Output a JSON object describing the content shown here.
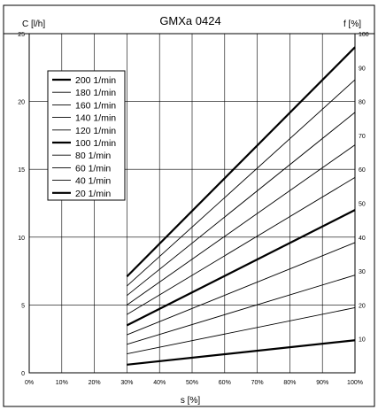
{
  "chart_data": {
    "type": "line",
    "title": "GMXa 0424",
    "ylabel": "C [l/h]",
    "y2label": "f [%]",
    "xlabel": "s [%]",
    "x_ticks": [
      "0%",
      "10%",
      "20%",
      "30%",
      "40%",
      "50%",
      "60%",
      "70%",
      "80%",
      "90%",
      "100%"
    ],
    "y_ticks": [
      "0",
      "5",
      "10",
      "15",
      "20",
      "25"
    ],
    "y2_ticks": [
      "10",
      "20",
      "30",
      "40",
      "50",
      "60",
      "70",
      "80",
      "90",
      "100"
    ],
    "xlim": [
      0,
      100
    ],
    "ylim": [
      0,
      25
    ],
    "y2lim": [
      0,
      100
    ],
    "grid": true,
    "legend_position": "top-left",
    "series": [
      {
        "name": "200 1/min",
        "bold": true,
        "x": [
          30,
          100
        ],
        "y": [
          7.1,
          24.0
        ]
      },
      {
        "name": "180 1/min",
        "bold": false,
        "x": [
          30,
          100
        ],
        "y": [
          6.4,
          21.6
        ]
      },
      {
        "name": "160 1/min",
        "bold": false,
        "x": [
          30,
          100
        ],
        "y": [
          5.7,
          19.2
        ]
      },
      {
        "name": "140 1/min",
        "bold": false,
        "x": [
          30,
          100
        ],
        "y": [
          5.0,
          16.8
        ]
      },
      {
        "name": "120 1/min",
        "bold": false,
        "x": [
          30,
          100
        ],
        "y": [
          4.3,
          14.4
        ]
      },
      {
        "name": "100 1/min",
        "bold": true,
        "x": [
          30,
          100
        ],
        "y": [
          3.5,
          12.0
        ]
      },
      {
        "name": "80 1/min",
        "bold": false,
        "x": [
          30,
          100
        ],
        "y": [
          2.8,
          9.6
        ]
      },
      {
        "name": "60 1/min",
        "bold": false,
        "x": [
          30,
          100
        ],
        "y": [
          2.1,
          7.2
        ]
      },
      {
        "name": "40 1/min",
        "bold": false,
        "x": [
          30,
          100
        ],
        "y": [
          1.4,
          4.8
        ]
      },
      {
        "name": "20 1/min",
        "bold": true,
        "x": [
          30,
          100
        ],
        "y": [
          0.6,
          2.4
        ]
      }
    ]
  }
}
